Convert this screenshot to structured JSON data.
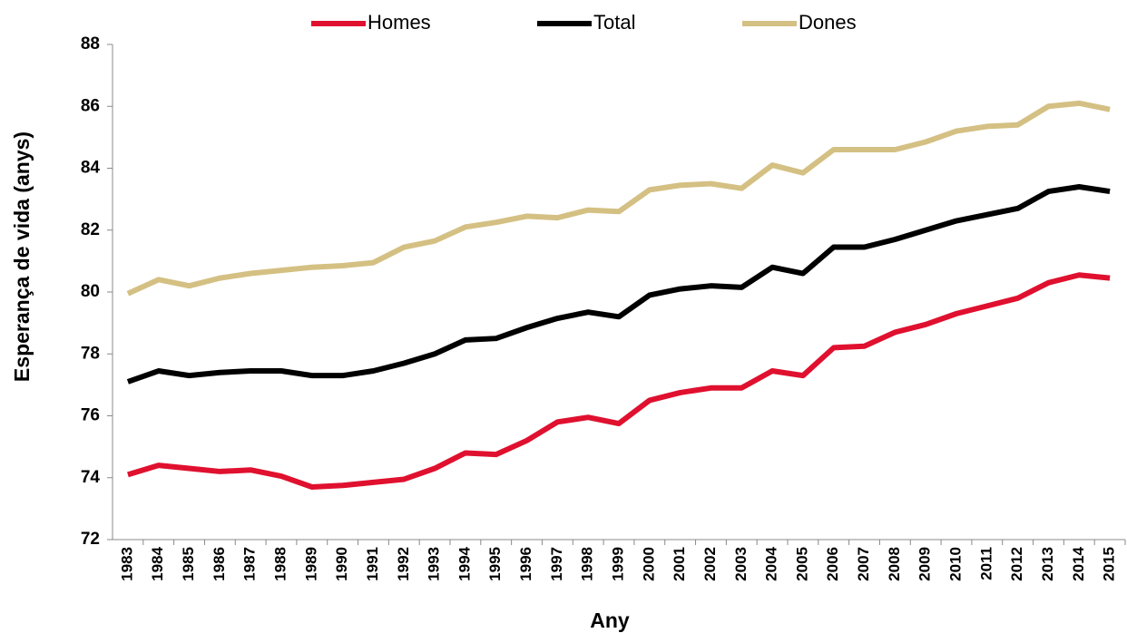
{
  "chart_data": {
    "type": "line",
    "x_label": "Any",
    "y_label": "Esperança de vida (anys)",
    "categories": [
      "1983",
      "1984",
      "1985",
      "1986",
      "1987",
      "1988",
      "1989",
      "1990",
      "1991",
      "1992",
      "1993",
      "1994",
      "1995",
      "1996",
      "1997",
      "1998",
      "1999",
      "2000",
      "2001",
      "2002",
      "2003",
      "2004",
      "2005",
      "2006",
      "2007",
      "2008",
      "2009",
      "2010",
      "2011",
      "2012",
      "2013",
      "2014",
      "2015"
    ],
    "series": [
      {
        "name": "Homes",
        "color": "#e0102f",
        "values": [
          74.1,
          74.4,
          74.3,
          74.2,
          74.25,
          74.05,
          73.7,
          73.75,
          73.85,
          73.95,
          74.3,
          74.8,
          74.75,
          75.2,
          75.8,
          75.95,
          75.75,
          76.5,
          76.75,
          76.9,
          76.9,
          77.45,
          77.3,
          78.2,
          78.25,
          78.7,
          78.95,
          79.3,
          79.55,
          79.8,
          80.3,
          80.55,
          80.45
        ]
      },
      {
        "name": "Total",
        "color": "#000000",
        "values": [
          77.1,
          77.45,
          77.3,
          77.4,
          77.45,
          77.45,
          77.3,
          77.3,
          77.45,
          77.7,
          78.0,
          78.45,
          78.5,
          78.85,
          79.15,
          79.35,
          79.2,
          79.9,
          80.1,
          80.2,
          80.15,
          80.8,
          80.6,
          81.45,
          81.45,
          81.7,
          82.0,
          82.3,
          82.5,
          82.7,
          83.25,
          83.4,
          83.25
        ]
      },
      {
        "name": "Dones",
        "color": "#d4c083",
        "values": [
          79.95,
          80.4,
          80.2,
          80.45,
          80.6,
          80.7,
          80.8,
          80.85,
          80.95,
          81.45,
          81.65,
          82.1,
          82.25,
          82.45,
          82.4,
          82.65,
          82.6,
          83.3,
          83.45,
          83.5,
          83.35,
          84.1,
          83.85,
          84.6,
          84.6,
          84.6,
          84.85,
          85.2,
          85.35,
          85.4,
          86.0,
          86.1,
          85.9
        ]
      }
    ],
    "ylim": [
      72,
      88
    ],
    "yticks": [
      72,
      74,
      76,
      78,
      80,
      82,
      84,
      86,
      88
    ],
    "grid": false,
    "legend": "top"
  }
}
